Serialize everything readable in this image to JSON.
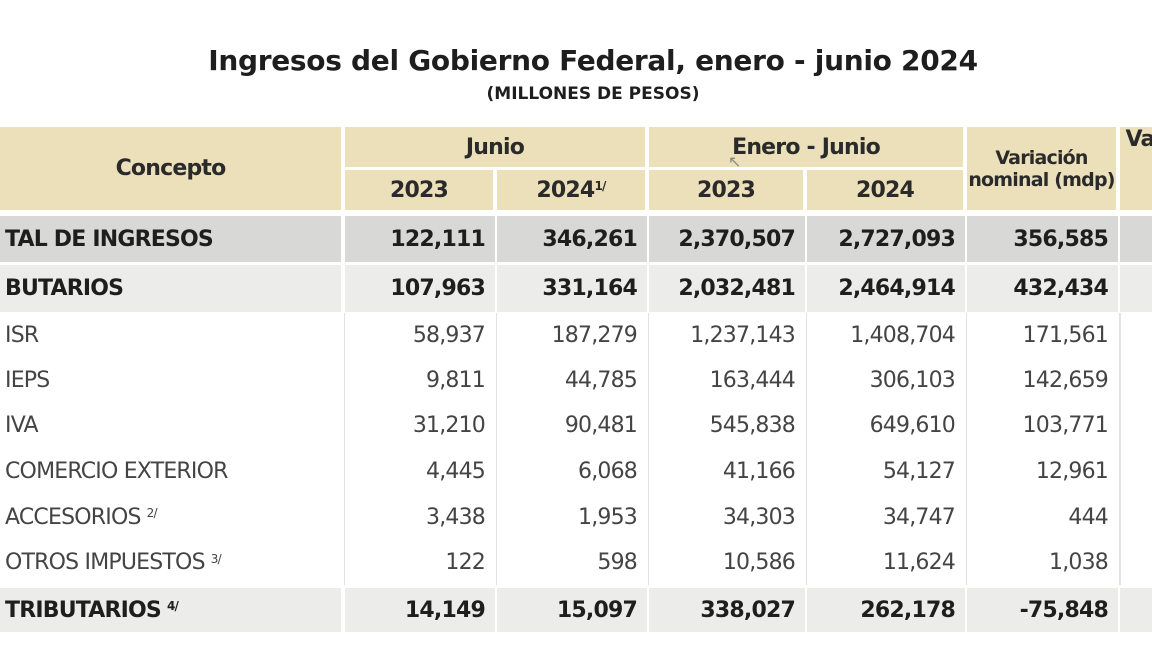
{
  "title": "Ingresos del Gobierno Federal, enero - junio 2024",
  "subtitle": "(MILLONES DE PESOS)",
  "header": {
    "concepto": "Concepto",
    "junio": "Junio",
    "enero_junio": "Enero - Junio",
    "variacion": "Variación nominal (mdp)",
    "variacion_cut": "Va",
    "y2023a": "2023",
    "y2024a": "2024",
    "y2024a_note": "1/",
    "y2023b": "2023",
    "y2024b": "2024"
  },
  "rows": [
    {
      "label": "TAL DE INGRESOS",
      "note": "",
      "values": [
        "122,111",
        "346,261",
        "2,370,507",
        "2,727,093",
        "356,585"
      ]
    },
    {
      "label": "BUTARIOS",
      "note": "",
      "values": [
        "107,963",
        "331,164",
        "2,032,481",
        "2,464,914",
        "432,434"
      ]
    },
    {
      "label": "ISR",
      "note": "",
      "values": [
        "58,937",
        "187,279",
        "1,237,143",
        "1,408,704",
        "171,561"
      ]
    },
    {
      "label": "IEPS",
      "note": "",
      "values": [
        "9,811",
        "44,785",
        "163,444",
        "306,103",
        "142,659"
      ]
    },
    {
      "label": "IVA",
      "note": "",
      "values": [
        "31,210",
        "90,481",
        "545,838",
        "649,610",
        "103,771"
      ]
    },
    {
      "label": "COMERCIO EXTERIOR",
      "note": "",
      "values": [
        "4,445",
        "6,068",
        "41,166",
        "54,127",
        "12,961"
      ]
    },
    {
      "label": "ACCESORIOS",
      "note": "2/",
      "values": [
        "3,438",
        "1,953",
        "34,303",
        "34,747",
        "444"
      ]
    },
    {
      "label": "OTROS IMPUESTOS",
      "note": "3/",
      "values": [
        "122",
        "598",
        "10,586",
        "11,624",
        "1,038"
      ]
    },
    {
      "label": "TRIBUTARIOS",
      "note": "4/",
      "values": [
        "14,149",
        "15,097",
        "338,027",
        "262,178",
        "-75,848"
      ]
    }
  ]
}
